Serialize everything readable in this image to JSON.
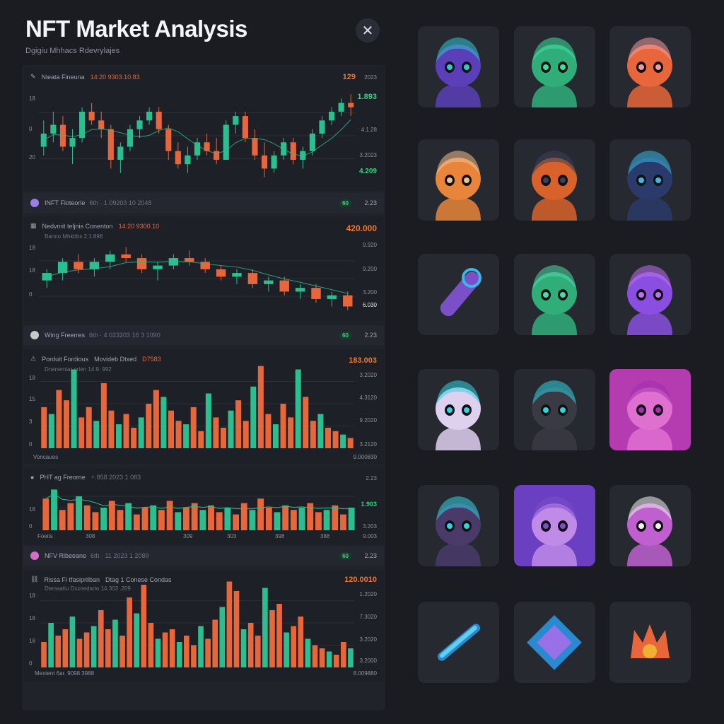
{
  "header": {
    "title": "NFT Market Analysis",
    "subtitle": "Dgigiu Mhhacs Rdevrylajes",
    "close_icon": "close-icon"
  },
  "colors": {
    "up": "#2bbf8f",
    "down": "#e8663a",
    "accent_green": "#2fd47e",
    "accent_orange": "#f0762e",
    "bg": "#1a1c22"
  },
  "charts": [
    {
      "id": "chart1",
      "header": {
        "icon": "pencil-icon",
        "name": "Nieata Fineuna",
        "detail": "14:20 9303.10.83"
      },
      "values_right": {
        "top": "129",
        "top_aux": "2023",
        "v1": "1.893",
        "v2": "4.1.28",
        "v3": "3.2023",
        "v4": "4.209"
      },
      "axis_left": [
        "18",
        "0",
        "20"
      ],
      "chart_data": {
        "type": "candlestick",
        "series": [
          {
            "values": [
              [
                14,
                20,
                12,
                17
              ],
              [
                17,
                22,
                15,
                19
              ],
              [
                19,
                21,
                13,
                14
              ],
              [
                14,
                18,
                10,
                16
              ],
              [
                16,
                23,
                15,
                22
              ],
              [
                22,
                24,
                19,
                20
              ],
              [
                20,
                22,
                16,
                18
              ],
              [
                18,
                19,
                9,
                11
              ],
              [
                11,
                15,
                8,
                14
              ],
              [
                14,
                19,
                13,
                18
              ],
              [
                18,
                21,
                16,
                20
              ],
              [
                20,
                23,
                19,
                22
              ],
              [
                22,
                23,
                17,
                18
              ],
              [
                18,
                19,
                11,
                13
              ],
              [
                13,
                15,
                9,
                10
              ],
              [
                10,
                14,
                8,
                12
              ],
              [
                12,
                16,
                11,
                15
              ],
              [
                15,
                17,
                12,
                13
              ],
              [
                13,
                16,
                10,
                11
              ],
              [
                11,
                20,
                11,
                19
              ],
              [
                19,
                22,
                17,
                21
              ],
              [
                21,
                22,
                15,
                16
              ],
              [
                16,
                18,
                11,
                12
              ],
              [
                12,
                15,
                7,
                9
              ],
              [
                9,
                13,
                8,
                12
              ],
              [
                12,
                16,
                11,
                15
              ],
              [
                15,
                16,
                10,
                11
              ],
              [
                11,
                14,
                9,
                13
              ],
              [
                13,
                18,
                12,
                17
              ],
              [
                17,
                21,
                16,
                20
              ],
              [
                20,
                23,
                19,
                22
              ],
              [
                22,
                25,
                21,
                24
              ],
              [
                24,
                26,
                21,
                23
              ]
            ]
          }
        ]
      }
    },
    {
      "id": "chart2",
      "header": {
        "icon": "grid-icon",
        "name": "Nedvmit teljnis Conenton",
        "detail": "14:20 9300.10",
        "sub": "Banno Mhkbbs 2.1.898"
      },
      "values_right": {
        "top": "420.000",
        "v1": "9.920",
        "v2": "9.200",
        "v3": "3.200",
        "v4": "6.030"
      },
      "axis_left": [
        "18",
        "18",
        "0"
      ],
      "chart_data": {
        "type": "candlestick",
        "series": [
          {
            "values": [
              [
                12,
                15,
                10,
                14
              ],
              [
                14,
                18,
                12,
                17
              ],
              [
                17,
                19,
                14,
                15
              ],
              [
                15,
                18,
                13,
                17
              ],
              [
                17,
                20,
                15,
                19
              ],
              [
                19,
                21,
                17,
                18
              ],
              [
                18,
                19,
                14,
                15
              ],
              [
                15,
                17,
                12,
                16
              ],
              [
                16,
                19,
                15,
                18
              ],
              [
                18,
                20,
                16,
                17
              ],
              [
                17,
                18,
                14,
                15
              ],
              [
                15,
                16,
                12,
                13
              ],
              [
                13,
                15,
                11,
                14
              ],
              [
                14,
                15,
                10,
                11
              ],
              [
                11,
                13,
                9,
                12
              ],
              [
                12,
                13,
                8,
                9
              ],
              [
                9,
                11,
                7,
                10
              ],
              [
                10,
                11,
                6,
                7
              ],
              [
                7,
                9,
                5,
                8
              ],
              [
                8,
                9,
                4,
                5
              ]
            ]
          }
        ]
      }
    },
    {
      "id": "chart3",
      "header": {
        "icon": "triangle-icon",
        "name": "Porduit Fordious",
        "detail": "Movideb Dtxed",
        "detail2": "D7583",
        "sub": "Dnenemiar orien 14.9. 992"
      },
      "values_right": {
        "top": "183.003",
        "v1": "3.2020",
        "v2": "4.3120",
        "v3": "9.2020",
        "v4": "3.2120"
      },
      "axis_left": [
        "18",
        "15",
        "3",
        "0"
      ],
      "axis_bottom_left": "Voncaues",
      "axis_bottom_right": "9.000830",
      "chart_data": {
        "type": "bar",
        "series": [
          {
            "name": "",
            "values": [
              12,
              10,
              17,
              14,
              23,
              9,
              12,
              8,
              19,
              11,
              7,
              10,
              6,
              9,
              13,
              17,
              15,
              11,
              8,
              7,
              12,
              5,
              16,
              9,
              6,
              11,
              14,
              8,
              18,
              24,
              10,
              7,
              13,
              9,
              23,
              15,
              8,
              10,
              6,
              5,
              4,
              3
            ]
          }
        ]
      }
    },
    {
      "id": "chart4",
      "header": {
        "icon": "coin-icon",
        "name": "PHT ag Freorne",
        "detail": "+.858 2023.1 083"
      },
      "values_right": {
        "top": "2.23",
        "v1": "1.903",
        "v2": "3.203",
        "v3": "9.003"
      },
      "axis_left": [
        "18",
        "0"
      ],
      "axis_bottom_left": "Foeits",
      "axis_bottom_ticks": [
        "308",
        "309",
        "303",
        "398",
        "388"
      ],
      "chart_data": {
        "type": "bar",
        "series": [
          {
            "name": "",
            "values": [
              14,
              18,
              9,
              12,
              15,
              11,
              8,
              10,
              13,
              9,
              12,
              7,
              10,
              11,
              9,
              13,
              8,
              10,
              12,
              9,
              11,
              8,
              10,
              7,
              12,
              9,
              14,
              10,
              8,
              11,
              9,
              10,
              12,
              8,
              9,
              11,
              7,
              10
            ]
          }
        ]
      }
    },
    {
      "id": "chart5",
      "header": {
        "icon": "link-icon",
        "name": "Rissa Fi tfasiprilban",
        "detail": "Dtag 1 Conese Condas",
        "sub": "Dtenaatiu Dxxnedarto 14.303 .209"
      },
      "values_right": {
        "top": "120.0010",
        "v1": "1.2020",
        "v2": "7.3020",
        "v3": "3.2020",
        "v4": "3.2000"
      },
      "axis_left": [
        "18",
        "18",
        "38",
        "18",
        "0"
      ],
      "axis_bottom_left": "Mextent 6ar. 9098 3988",
      "axis_bottom_right": "8.009880",
      "chart_data": {
        "type": "bar",
        "series": [
          {
            "name": "",
            "values": [
              8,
              14,
              10,
              12,
              16,
              9,
              11,
              13,
              18,
              12,
              15,
              10,
              22,
              17,
              26,
              14,
              9,
              11,
              12,
              8,
              10,
              7,
              13,
              9,
              15,
              19,
              27,
              24,
              12,
              14,
              10,
              25,
              18,
              20,
              11,
              13,
              16,
              9,
              7,
              6,
              5,
              4,
              8,
              6
            ]
          }
        ]
      }
    }
  ],
  "strips": [
    {
      "icon": "nft-icon",
      "name": "INFT Fioteorie",
      "detail": "6th · 1 09203 10 2048",
      "badge": "60",
      "num": "2.23"
    },
    {
      "icon": "cup-icon",
      "name": "Wing Freerres",
      "detail": "6th · 4 023203 16 3 1090",
      "badge": "60",
      "num": "2.23"
    },
    {
      "icon": "nfv-icon",
      "name": "NFV Ribeeane",
      "detail": "6th · 11 2023 1 2089",
      "badge": "60",
      "num": "2.23"
    }
  ],
  "nfts": [
    {
      "name": "shadow-purple-creature"
    },
    {
      "name": "green-haired-character"
    },
    {
      "name": "orange-haired-girl"
    },
    {
      "name": "orange-cat-girl"
    },
    {
      "name": "horned-dark-creature"
    },
    {
      "name": "blue-horned-skull"
    },
    {
      "name": "purple-cannon-weapon"
    },
    {
      "name": "green-dragon-creature"
    },
    {
      "name": "purple-flame-mask"
    },
    {
      "name": "white-panda-creature"
    },
    {
      "name": "dark-spiky-character"
    },
    {
      "name": "pink-demon-figure"
    },
    {
      "name": "dark-robot-creature"
    },
    {
      "name": "purple-masked-creature"
    },
    {
      "name": "pink-bunny-creature"
    },
    {
      "name": "blue-crystal-staff"
    },
    {
      "name": "blue-crystal-gem"
    },
    {
      "name": "orange-flame-crown"
    }
  ]
}
